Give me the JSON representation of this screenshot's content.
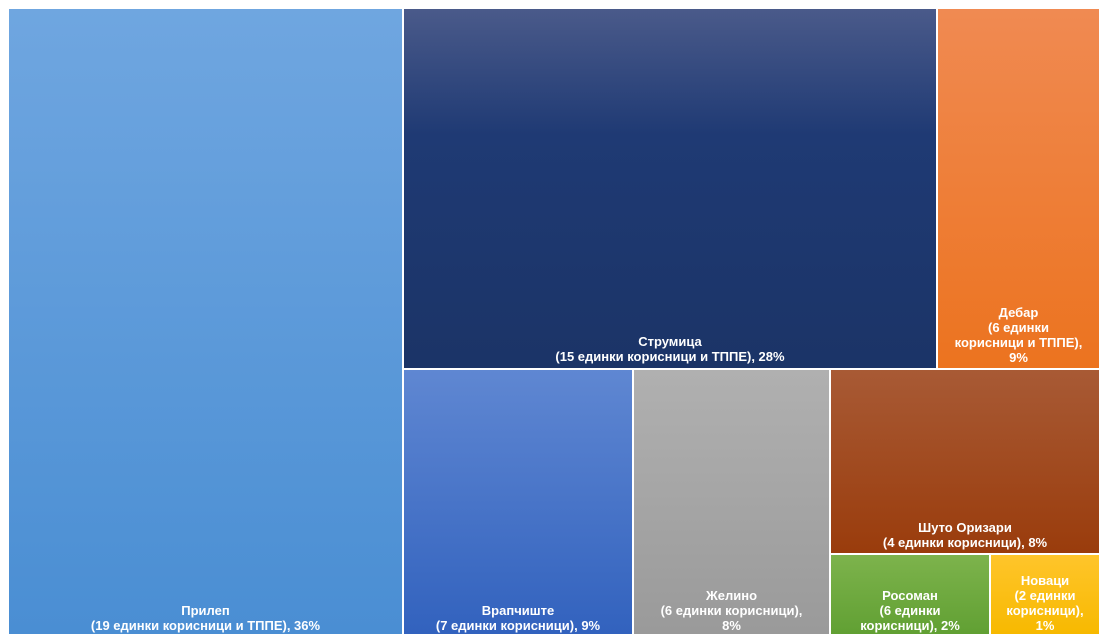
{
  "chart_data": {
    "type": "treemap",
    "items": [
      {
        "name": "Прилеп",
        "detail": "(19 единки корисници и ТППЕ), 36%",
        "units": 19,
        "percent": 36,
        "color": "#4a8ed3"
      },
      {
        "name": "Струмица",
        "detail": "(15 единки корисници и ТППЕ), 28%",
        "units": 15,
        "percent": 28,
        "color": "#1f3a74"
      },
      {
        "name": "Дебар",
        "detail_lines": [
          "(6 единки",
          "корисници и ТППЕ),",
          "9%"
        ],
        "units": 6,
        "percent": 9,
        "color": "#ec731f"
      },
      {
        "name": "Врапчиште",
        "detail": "(7 единки корисници), 9%",
        "units": 7,
        "percent": 9,
        "color": "#3262be"
      },
      {
        "name": "Желино",
        "detail_lines": [
          "(6 единки корисници),",
          "8%"
        ],
        "units": 6,
        "percent": 8,
        "color": "#9a9a9a"
      },
      {
        "name": "Шуто Оризари",
        "detail": "(4 единки корисници), 8%",
        "units": 4,
        "percent": 8,
        "color": "#9a3c0c"
      },
      {
        "name": "Росоман",
        "detail_lines": [
          "(6 единки",
          "корисници), 2%"
        ],
        "units": 6,
        "percent": 2,
        "color": "#61a033"
      },
      {
        "name": "Новаци",
        "detail_lines": [
          "(2 единки",
          "корисници),",
          "1%"
        ],
        "units": 2,
        "percent": 1,
        "color": "#f7b900"
      }
    ]
  }
}
